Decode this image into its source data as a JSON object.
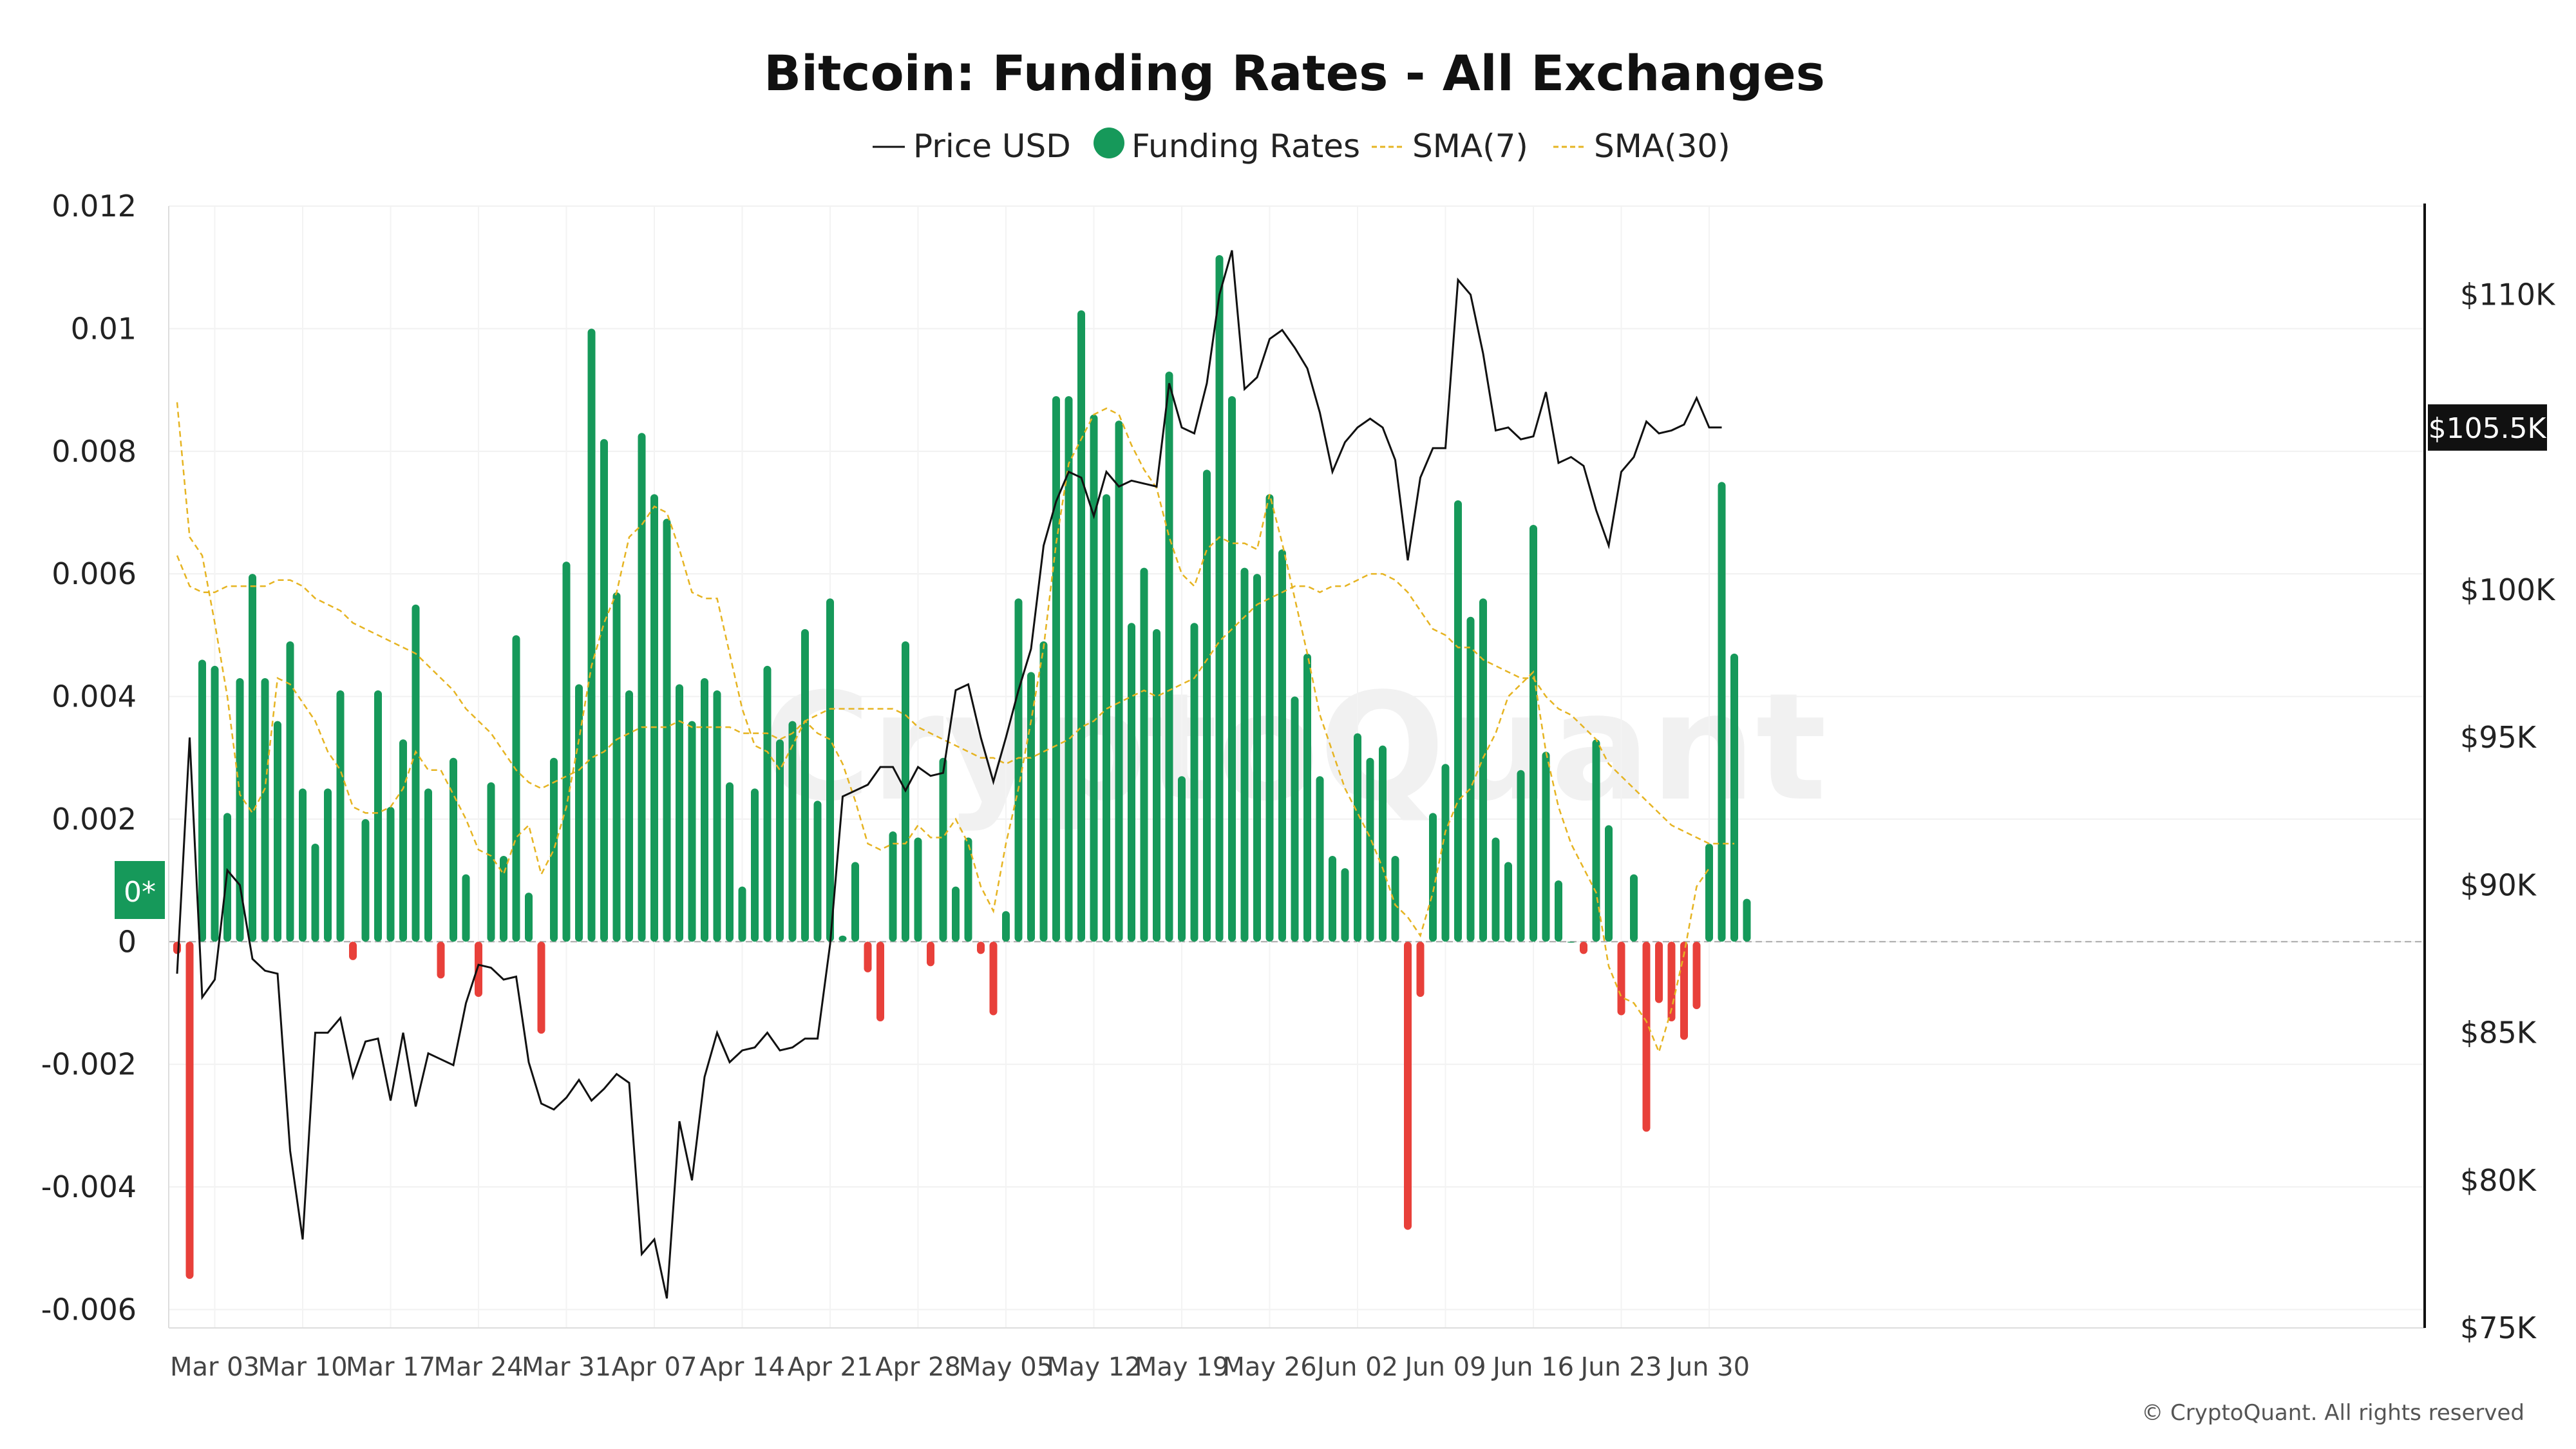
{
  "chart_data": {
    "type": "bar",
    "title": "Bitcoin: Funding Rates - All Exchanges",
    "legend": [
      {
        "name": "Price USD",
        "style": "line",
        "color": "#111111"
      },
      {
        "name": "Funding Rates",
        "style": "dot",
        "color": "#16995a"
      },
      {
        "name": "SMA(7)",
        "style": "dashed",
        "color": "#e6b422"
      },
      {
        "name": "SMA(30)",
        "style": "dashed",
        "color": "#e6b422"
      }
    ],
    "legend_position": "top-center",
    "x_start": "2025-02-28",
    "x_ticks": [
      "Mar 03",
      "Mar 10",
      "Mar 17",
      "Mar 24",
      "Mar 31",
      "Apr 07",
      "Apr 14",
      "Apr 21",
      "Apr 28",
      "May 05",
      "May 12",
      "May 19",
      "May 26",
      "Jun 02",
      "Jun 09",
      "Jun 16",
      "Jun 23",
      "Jun 30"
    ],
    "y_left": {
      "min": -0.0063,
      "max": 0.012,
      "ticks": [
        0.012,
        0.01,
        0.008,
        0.006,
        0.004,
        0.002,
        0,
        -0.002,
        -0.004,
        -0.006
      ],
      "tick_labels": [
        "0.012",
        "0.01",
        "0.008",
        "0.006",
        "0.004",
        "0.002",
        "0",
        "-0.002",
        "-0.004",
        "-0.006"
      ]
    },
    "y_right": {
      "min": 75000,
      "max": 113000,
      "ticks": [
        110000,
        100000,
        95000,
        90000,
        85000,
        80000,
        75000
      ],
      "tick_labels": [
        "$110K",
        "$100K",
        "$95K",
        "$90K",
        "$85K",
        "$80K",
        "$75K"
      ]
    },
    "zero_badge": "0*",
    "last_price_label": "$105.5K",
    "last_price_value": 105500,
    "grid": true,
    "positive_color": "#16995a",
    "negative_color": "#e8403a",
    "funding_rates": [
      -0.0002,
      -0.0055,
      0.0046,
      0.0045,
      0.0021,
      0.0043,
      0.006,
      0.0043,
      0.0036,
      0.0049,
      0.0025,
      0.0016,
      0.0025,
      0.0041,
      -0.0003,
      0.002,
      0.0041,
      0.0022,
      0.0033,
      0.0055,
      0.0025,
      -0.0006,
      0.003,
      0.0011,
      -0.0009,
      0.0026,
      0.0014,
      0.005,
      0.0008,
      -0.0015,
      0.003,
      0.0062,
      0.0042,
      0.01,
      0.0082,
      0.0057,
      0.0041,
      0.0083,
      0.0073,
      0.0069,
      0.0042,
      0.0036,
      0.0043,
      0.0041,
      0.0026,
      0.0009,
      0.0025,
      0.0045,
      0.0033,
      0.0036,
      0.0051,
      0.0023,
      0.0056,
      0.0001,
      0.0013,
      -0.0005,
      -0.0013,
      0.0018,
      0.0049,
      0.0017,
      -0.0004,
      0.003,
      0.0009,
      0.0017,
      -0.0002,
      -0.0012,
      0.0005,
      0.0056,
      0.0044,
      0.0049,
      0.0089,
      0.0089,
      0.0103,
      0.0086,
      0.0073,
      0.0085,
      0.0052,
      0.0061,
      0.0051,
      0.0093,
      0.0027,
      0.0052,
      0.0077,
      0.0112,
      0.0089,
      0.0061,
      0.006,
      0.0073,
      0.0064,
      0.004,
      0.0047,
      0.0027,
      0.0014,
      0.0012,
      0.0034,
      0.003,
      0.0032,
      0.0014,
      -0.0047,
      -0.0009,
      0.0021,
      0.0029,
      0.0072,
      0.0053,
      0.0056,
      0.0017,
      0.0013,
      0.0028,
      0.0068,
      0.0031,
      0.001,
      0,
      -0.0002,
      0.0033,
      0.0019,
      -0.0012,
      0.0011,
      -0.0031,
      -0.001,
      -0.0013,
      -0.0016,
      -0.0011,
      0.0016,
      0.0075,
      0.0047,
      0.0007
    ],
    "price_usd": [
      87000,
      95000,
      86200,
      86800,
      90500,
      90000,
      87500,
      87100,
      87000,
      81000,
      78000,
      85000,
      85000,
      85500,
      83500,
      84700,
      84800,
      82700,
      85000,
      82500,
      84300,
      84100,
      83900,
      86000,
      87300,
      87200,
      86800,
      86900,
      84000,
      82600,
      82400,
      82800,
      83400,
      82700,
      83100,
      83600,
      83300,
      77500,
      78000,
      76000,
      82000,
      80000,
      83500,
      85000,
      84000,
      84400,
      84500,
      85000,
      84400,
      84500,
      84800,
      84800,
      88000,
      93000,
      93200,
      93400,
      94000,
      94000,
      93200,
      94000,
      93700,
      93800,
      96600,
      96800,
      95000,
      93500,
      95000,
      96600,
      98000,
      101500,
      103000,
      104000,
      103800,
      102500,
      104000,
      103500,
      103700,
      103600,
      103500,
      107000,
      105500,
      105300,
      107000,
      110000,
      111500,
      106800,
      107200,
      108500,
      108800,
      108200,
      107500,
      106000,
      104000,
      105000,
      105500,
      105800,
      105500,
      104400,
      101000,
      103800,
      104800,
      104800,
      110500,
      110000,
      108000,
      105400,
      105500,
      105100,
      105200,
      106700,
      104300,
      104500,
      104200,
      102700,
      101500,
      104000,
      104500,
      105700,
      105300,
      105400,
      105600,
      106500,
      105500,
      105500
    ],
    "sma7": [
      0.0088,
      0.0066,
      0.0063,
      0.0052,
      0.004,
      0.0024,
      0.0021,
      0.0025,
      0.0043,
      0.0042,
      0.0039,
      0.0036,
      0.0031,
      0.0028,
      0.0022,
      0.0021,
      0.0021,
      0.0022,
      0.0025,
      0.0031,
      0.0028,
      0.0028,
      0.0024,
      0.002,
      0.0015,
      0.0014,
      0.0011,
      0.0017,
      0.0019,
      0.0011,
      0.0015,
      0.0022,
      0.0033,
      0.0045,
      0.0052,
      0.0057,
      0.0066,
      0.0068,
      0.0071,
      0.007,
      0.0064,
      0.0057,
      0.0056,
      0.0056,
      0.0047,
      0.0038,
      0.0032,
      0.0031,
      0.0028,
      0.0032,
      0.0036,
      0.0034,
      0.0033,
      0.0029,
      0.0023,
      0.0016,
      0.0015,
      0.0016,
      0.0016,
      0.0019,
      0.0017,
      0.0017,
      0.002,
      0.0016,
      0.0009,
      0.0005,
      0.0016,
      0.0025,
      0.0036,
      0.0048,
      0.0065,
      0.0078,
      0.0082,
      0.0086,
      0.0087,
      0.0086,
      0.0081,
      0.0077,
      0.0074,
      0.0066,
      0.006,
      0.0058,
      0.0064,
      0.0066,
      0.0065,
      0.0065,
      0.0064,
      0.0073,
      0.0065,
      0.0056,
      0.0047,
      0.0037,
      0.0031,
      0.0025,
      0.0021,
      0.0017,
      0.0012,
      0.0006,
      0.0004,
      0.0001,
      0.0008,
      0.0018,
      0.0023,
      0.0025,
      0.003,
      0.0034,
      0.004,
      0.0042,
      0.0044,
      0.0031,
      0.0022,
      0.0016,
      0.0012,
      0.0008,
      -0.0004,
      -0.0009,
      -0.001,
      -0.0013,
      -0.0018,
      -0.0011,
      -0.0002,
      0.0009,
      0.0012
    ],
    "sma30": [
      0.0063,
      0.0058,
      0.0057,
      0.0057,
      0.0058,
      0.0058,
      0.0058,
      0.0058,
      0.0059,
      0.0059,
      0.0058,
      0.0056,
      0.0055,
      0.0054,
      0.0052,
      0.0051,
      0.005,
      0.0049,
      0.0048,
      0.0047,
      0.0045,
      0.0043,
      0.0041,
      0.0038,
      0.0036,
      0.0034,
      0.0031,
      0.0028,
      0.0026,
      0.0025,
      0.0026,
      0.0027,
      0.0028,
      0.003,
      0.0031,
      0.0033,
      0.0034,
      0.0035,
      0.0035,
      0.0035,
      0.0036,
      0.0035,
      0.0035,
      0.0035,
      0.0035,
      0.0034,
      0.0034,
      0.0034,
      0.0033,
      0.0034,
      0.0036,
      0.0037,
      0.0038,
      0.0038,
      0.0038,
      0.0038,
      0.0038,
      0.0038,
      0.0037,
      0.0035,
      0.0034,
      0.0033,
      0.0032,
      0.0031,
      0.003,
      0.003,
      0.0029,
      0.003,
      0.003,
      0.0031,
      0.0032,
      0.0033,
      0.0035,
      0.0036,
      0.0038,
      0.0039,
      0.004,
      0.0041,
      0.004,
      0.0041,
      0.0042,
      0.0043,
      0.0046,
      0.0049,
      0.0051,
      0.0053,
      0.0055,
      0.0056,
      0.0057,
      0.0058,
      0.0058,
      0.0057,
      0.0058,
      0.0058,
      0.0059,
      0.006,
      0.006,
      0.0059,
      0.0057,
      0.0054,
      0.0051,
      0.005,
      0.0048,
      0.0048,
      0.0046,
      0.0045,
      0.0044,
      0.0043,
      0.0043,
      0.004,
      0.0038,
      0.0037,
      0.0035,
      0.0033,
      0.0029,
      0.0027,
      0.0025,
      0.0023,
      0.0021,
      0.0019,
      0.0018,
      0.0017,
      0.0016,
      0.0016,
      0.0016
    ]
  },
  "footer": {
    "copyright": "© CryptoQuant. All rights reserved"
  },
  "watermark": "CryptoQuant"
}
